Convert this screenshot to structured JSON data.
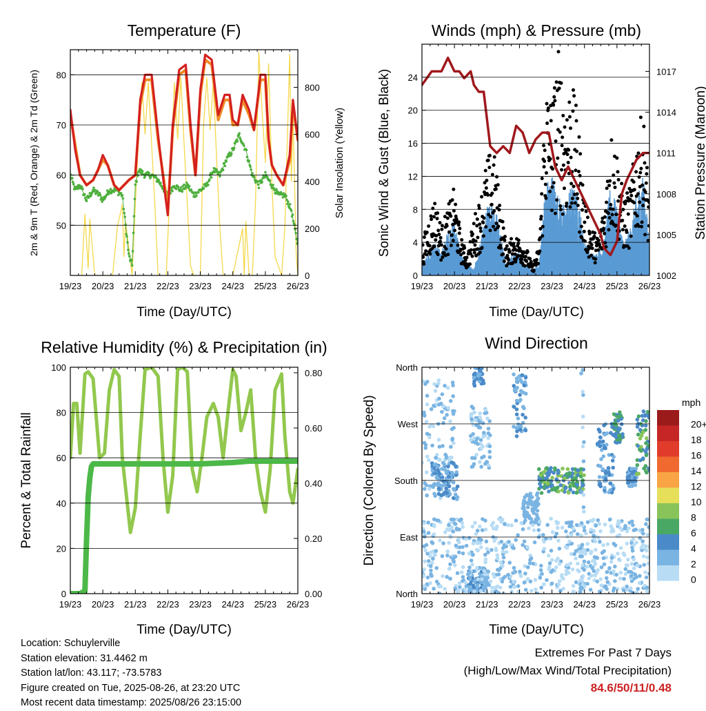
{
  "colors": {
    "temp_2m": "#d42020",
    "temp_9m": "#f08a24",
    "dewpoint": "#4daf3c",
    "solar": "#f5d84a",
    "wind": "#5a9bd4",
    "gust": "#000000",
    "pressure": "#a0181c",
    "rh": "#92c84e",
    "precip": "#4cb848",
    "extremes_text": "#cc2222"
  },
  "x_ticks": [
    "19/23",
    "20/23",
    "21/23",
    "22/23",
    "23/23",
    "24/23",
    "25/23",
    "26/23"
  ],
  "chart_data": [
    {
      "type": "line",
      "title": "Temperature (F)",
      "xlabel": "Time (Day/UTC)",
      "ylabel": "2m & 9m T (Red, Orange) & 2m Td (Green)",
      "y2label": "Solar Insolation (Yellow)",
      "xlim": [
        0,
        7
      ],
      "ylim": [
        40,
        85
      ],
      "y2lim": [
        0,
        960
      ],
      "yticks": [
        50,
        60,
        70,
        80
      ],
      "y2ticks": [
        0,
        200,
        400,
        600,
        800
      ],
      "grid": true,
      "series": [
        {
          "role": "temp_2m",
          "x": [
            0,
            0.15,
            0.3,
            0.5,
            0.7,
            0.85,
            1.0,
            1.15,
            1.35,
            1.5,
            1.65,
            1.8,
            2.0,
            2.15,
            2.3,
            2.5,
            2.7,
            2.9,
            3.0,
            3.15,
            3.35,
            3.55,
            3.7,
            3.85,
            4.0,
            4.15,
            4.35,
            4.55,
            4.75,
            4.9,
            5.0,
            5.15,
            5.3,
            5.5,
            5.65,
            5.85,
            6.0,
            6.1,
            6.2,
            6.35,
            6.55,
            6.75,
            6.85,
            7.0
          ],
          "y": [
            73,
            65,
            60,
            58,
            59,
            61,
            64,
            62,
            58,
            57,
            58,
            59,
            60,
            75,
            80,
            80,
            68,
            57,
            52,
            70,
            81,
            82,
            70,
            60,
            77,
            84,
            83,
            72,
            76,
            76,
            71,
            70,
            76,
            73,
            69,
            80,
            80,
            67,
            62,
            60,
            58,
            64,
            75,
            67
          ]
        },
        {
          "role": "temp_9m",
          "x": [
            0,
            0.15,
            0.3,
            0.5,
            0.7,
            0.85,
            1.0,
            1.15,
            1.35,
            1.5,
            1.65,
            1.8,
            2.0,
            2.15,
            2.3,
            2.5,
            2.7,
            2.9,
            3.0,
            3.15,
            3.35,
            3.55,
            3.7,
            3.85,
            4.0,
            4.15,
            4.35,
            4.55,
            4.75,
            4.9,
            5.0,
            5.15,
            5.3,
            5.5,
            5.65,
            5.85,
            6.0,
            6.1,
            6.2,
            6.35,
            6.55,
            6.75,
            6.85,
            7.0
          ],
          "y": [
            72,
            66,
            60,
            58,
            59,
            61,
            63,
            62,
            58,
            57,
            58,
            59,
            60,
            74,
            79,
            79,
            67,
            58,
            53,
            69,
            80,
            81,
            69,
            60,
            76,
            83,
            82,
            71,
            75,
            75,
            70,
            70,
            75,
            72,
            69,
            79,
            79,
            67,
            62,
            60,
            58,
            63,
            74,
            67
          ]
        },
        {
          "role": "dewpoint",
          "x": [
            0,
            0.15,
            0.3,
            0.5,
            0.7,
            0.9,
            1.0,
            1.2,
            1.4,
            1.6,
            1.8,
            1.9,
            2.0,
            2.1,
            2.3,
            2.5,
            2.7,
            2.9,
            3.0,
            3.2,
            3.4,
            3.6,
            3.8,
            4.0,
            4.2,
            4.4,
            4.6,
            4.8,
            5.0,
            5.2,
            5.4,
            5.6,
            5.8,
            6.0,
            6.2,
            6.4,
            6.6,
            6.8,
            7.0
          ],
          "y": [
            60,
            57,
            58,
            55,
            57,
            56,
            55,
            57,
            57,
            56,
            44,
            42,
            58,
            61,
            60,
            60,
            59,
            57,
            56,
            58,
            57,
            58,
            56,
            57,
            58,
            61,
            60,
            63,
            65,
            68,
            65,
            60,
            58,
            60,
            58,
            56,
            56,
            53,
            46
          ]
        },
        {
          "role": "solar",
          "x": [
            0.35,
            0.45,
            0.55,
            0.6,
            0.75,
            1.3,
            1.45,
            1.6,
            1.65,
            1.7,
            1.9,
            2.0,
            2.1,
            2.2,
            2.3,
            2.4,
            2.5,
            2.6,
            2.7,
            2.8,
            2.95,
            3.1,
            3.2,
            3.3,
            3.4,
            3.5,
            3.6,
            3.7,
            3.8,
            4.0,
            4.1,
            4.2,
            4.3,
            4.4,
            4.5,
            4.6,
            4.7,
            4.8,
            5.0,
            5.3,
            5.35,
            5.4,
            5.5,
            5.6,
            5.7,
            5.8,
            5.9,
            6.0,
            6.1,
            6.2,
            6.3,
            6.5,
            6.6,
            6.75,
            6.8,
            6.85,
            6.95,
            7.0
          ],
          "y": [
            0,
            260,
            30,
            240,
            0,
            0,
            210,
            300,
            80,
            230,
            0,
            300,
            590,
            820,
            600,
            820,
            560,
            300,
            0,
            0,
            0,
            480,
            820,
            580,
            840,
            560,
            300,
            40,
            0,
            0,
            640,
            840,
            620,
            820,
            500,
            200,
            0,
            0,
            0,
            200,
            0,
            230,
            0,
            0,
            320,
            950,
            700,
            480,
            900,
            400,
            80,
            0,
            200,
            940,
            400,
            700,
            90,
            0
          ]
        }
      ]
    },
    {
      "type": "line",
      "title": "Winds (mph) & Pressure (mb)",
      "xlabel": "Time (Day/UTC)",
      "ylabel": "Sonic Wind & Gust (Blue, Black)",
      "y2label": "Station Pressure (Maroon)",
      "xlim": [
        0,
        7
      ],
      "ylim": [
        0,
        28
      ],
      "y2lim": [
        1002,
        1019
      ],
      "yticks": [
        0,
        4,
        8,
        12,
        16,
        20,
        24
      ],
      "y2ticks": [
        1002,
        1005,
        1008,
        1011,
        1014,
        1017
      ],
      "grid": true,
      "series": [
        {
          "role": "wind",
          "x": [
            0,
            0.2,
            0.4,
            0.6,
            0.8,
            1.0,
            1.2,
            1.4,
            1.6,
            1.8,
            2.0,
            2.2,
            2.4,
            2.6,
            2.8,
            3.0,
            3.2,
            3.4,
            3.6,
            3.8,
            4.0,
            4.2,
            4.4,
            4.6,
            4.8,
            5.0,
            5.2,
            5.4,
            5.6,
            5.8,
            6.0,
            6.2,
            6.4,
            6.6,
            6.8,
            7.0
          ],
          "y": [
            1,
            2,
            3,
            2,
            4,
            5,
            2,
            1,
            0.5,
            3,
            6,
            7,
            4,
            1,
            2,
            2,
            1,
            0.5,
            1,
            8,
            9,
            7,
            6,
            8,
            7,
            3,
            2,
            2,
            3,
            8,
            6,
            3,
            4,
            7,
            9,
            3
          ]
        },
        {
          "role": "gust",
          "x": [
            0,
            0.2,
            0.4,
            0.6,
            0.8,
            1.0,
            1.2,
            1.4,
            1.6,
            1.8,
            2.0,
            2.2,
            2.4,
            2.6,
            2.8,
            3.0,
            3.2,
            3.4,
            3.6,
            3.8,
            4.0,
            4.2,
            4.4,
            4.6,
            4.8,
            5.0,
            5.2,
            5.4,
            5.6,
            5.8,
            6.0,
            6.2,
            6.4,
            6.6,
            6.8,
            7.0
          ],
          "y": [
            3,
            6,
            8,
            5,
            7,
            9,
            4,
            2,
            6,
            8,
            12,
            13,
            8,
            3,
            4,
            4,
            3,
            1,
            3,
            20,
            18,
            23,
            19,
            20,
            16,
            8,
            5,
            4,
            7,
            15,
            13,
            8,
            9,
            14,
            17,
            8
          ]
        },
        {
          "role": "pressure",
          "x": [
            0,
            0.3,
            0.6,
            0.8,
            1.0,
            1.15,
            1.3,
            1.5,
            1.6,
            1.75,
            1.9,
            2.1,
            2.3,
            2.5,
            2.7,
            2.9,
            3.1,
            3.3,
            3.5,
            3.7,
            3.9,
            4.1,
            4.3,
            4.5,
            4.7,
            4.9,
            5.1,
            5.3,
            5.5,
            5.6,
            5.8,
            6.0,
            6.15,
            6.3,
            6.5,
            6.6,
            6.8,
            7.0
          ],
          "y": [
            1016,
            1017,
            1017,
            1018,
            1017,
            1017,
            1016.5,
            1017,
            1016,
            1015.5,
            1015.5,
            1011.5,
            1011,
            1011.5,
            1011,
            1013,
            1012.5,
            1011,
            1012,
            1012.5,
            1012.5,
            1010,
            1009,
            1010,
            1009,
            1008,
            1007,
            1006,
            1005,
            1004,
            1003.5,
            1004.5,
            1008,
            1009,
            1010,
            1010.5,
            1011,
            1011
          ]
        }
      ]
    },
    {
      "type": "line",
      "title": "Relative Humidity (%) & Precipitation (in)",
      "xlabel": "Time (Day/UTC)",
      "ylabel": "Percent & Total Rainfall",
      "xlim": [
        0,
        7
      ],
      "ylim": [
        0,
        100
      ],
      "y2lim": [
        0,
        0.82
      ],
      "yticks": [
        0,
        20,
        40,
        60,
        80,
        100
      ],
      "y2ticks": [
        0.0,
        0.2,
        0.4,
        0.6,
        0.8
      ],
      "y2ticklabels": [
        "0.00",
        "0.20",
        "0.40",
        "0.60",
        "0.80"
      ],
      "grid": true,
      "series": [
        {
          "role": "rh",
          "x": [
            0,
            0.1,
            0.2,
            0.3,
            0.45,
            0.55,
            0.7,
            0.9,
            1.05,
            1.2,
            1.35,
            1.5,
            1.6,
            1.75,
            1.85,
            2.0,
            2.15,
            2.3,
            2.5,
            2.7,
            2.85,
            3.0,
            3.15,
            3.3,
            3.45,
            3.6,
            3.75,
            3.9,
            4.05,
            4.2,
            4.4,
            4.55,
            4.7,
            4.85,
            5.0,
            5.1,
            5.25,
            5.4,
            5.55,
            5.7,
            5.85,
            6.0,
            6.15,
            6.3,
            6.5,
            6.6,
            6.75,
            6.85,
            7.0
          ],
          "y": [
            60,
            84,
            84,
            62,
            97,
            98,
            95,
            60,
            62,
            90,
            99,
            96,
            60,
            40,
            27,
            38,
            70,
            99,
            100,
            96,
            60,
            36,
            52,
            99,
            100,
            98,
            55,
            45,
            60,
            78,
            84,
            78,
            60,
            80,
            99,
            96,
            72,
            80,
            90,
            60,
            45,
            36,
            55,
            90,
            97,
            70,
            45,
            40,
            55
          ]
        },
        {
          "role": "precip",
          "x": [
            0,
            0.3,
            0.45,
            0.5,
            0.55,
            0.6,
            0.65,
            0.7,
            0.8,
            1.0,
            2.0,
            3.0,
            4.0,
            5.0,
            5.5,
            6.0,
            6.5,
            7.0
          ],
          "y": [
            0,
            0,
            0.01,
            0.2,
            0.35,
            0.42,
            0.46,
            0.47,
            0.47,
            0.47,
            0.47,
            0.47,
            0.47,
            0.475,
            0.48,
            0.48,
            0.48,
            0.48
          ]
        }
      ]
    },
    {
      "type": "scatter",
      "title": "Wind Direction",
      "xlabel": "Time (Day/UTC)",
      "ylabel": "Direction (Colored By Speed)",
      "xlim": [
        0,
        7
      ],
      "ylim": [
        0,
        360
      ],
      "yticks": [
        0,
        90,
        180,
        270,
        360
      ],
      "yticklabels": [
        "North",
        "East",
        "South",
        "West",
        "North"
      ],
      "grid": true,
      "colorbar": {
        "unit": "mph",
        "labels": [
          "20+",
          "18",
          "16",
          "14",
          "12",
          "10",
          "8",
          "6",
          "4",
          "2",
          "0"
        ],
        "colors": [
          "#9b1b1b",
          "#c62626",
          "#e03b2b",
          "#f06a30",
          "#f9a545",
          "#e6df5a",
          "#88c45a",
          "#4aa865",
          "#4a8ac8",
          "#7ab4e2",
          "#b8dcf4"
        ]
      },
      "clusters": [
        {
          "x": [
            0,
            1.0
          ],
          "d": [
            150,
            340
          ],
          "speed": [
            0,
            3
          ]
        },
        {
          "x": [
            0.3,
            1.1
          ],
          "d": [
            150,
            210
          ],
          "speed": [
            1,
            4
          ]
        },
        {
          "x": [
            1.6,
            1.9
          ],
          "d": [
            330,
            360
          ],
          "speed": [
            2,
            5
          ]
        },
        {
          "x": [
            1.5,
            2.1
          ],
          "d": [
            200,
            300
          ],
          "speed": [
            0,
            3
          ]
        },
        {
          "x": [
            1.4,
            2.0
          ],
          "d": [
            0,
            40
          ],
          "speed": [
            2,
            4
          ]
        },
        {
          "x": [
            2.8,
            3.2
          ],
          "d": [
            250,
            350
          ],
          "speed": [
            1,
            4
          ]
        },
        {
          "x": [
            3.1,
            3.6
          ],
          "d": [
            110,
            160
          ],
          "speed": [
            1,
            3
          ]
        },
        {
          "x": [
            3.6,
            5.0
          ],
          "d": [
            160,
            200
          ],
          "speed": [
            3,
            9
          ]
        },
        {
          "x": [
            5.4,
            5.9
          ],
          "d": [
            160,
            270
          ],
          "speed": [
            1,
            5
          ]
        },
        {
          "x": [
            5.9,
            6.2
          ],
          "d": [
            240,
            290
          ],
          "speed": [
            3,
            7
          ]
        },
        {
          "x": [
            6.3,
            6.6
          ],
          "d": [
            170,
            200
          ],
          "speed": [
            2,
            4
          ]
        },
        {
          "x": [
            6.6,
            7.0
          ],
          "d": [
            190,
            290
          ],
          "speed": [
            3,
            8
          ]
        },
        {
          "x": [
            4.9,
            5.0
          ],
          "d": [
            0,
            360
          ],
          "speed": [
            0,
            2
          ]
        },
        {
          "x": [
            0,
            7.0
          ],
          "d": [
            0,
            120
          ],
          "speed": [
            0,
            2
          ]
        }
      ]
    }
  ],
  "meta": {
    "location": "Location: Schuylerville",
    "elevation": "Station elevation: 31.4462 m",
    "latlon": "Station lat/lon: 43.117; -73.5783",
    "created": "Figure created on Tue, 2025-08-26, at 23:20 UTC",
    "latest": "Most recent data timestamp: 2025/08/26 23:15:00"
  },
  "extremes": {
    "title": "Extremes For Past 7 Days",
    "subtitle": "(High/Low/Max Wind/Total Precipitation)",
    "values": "84.6/50/11/0.48"
  }
}
